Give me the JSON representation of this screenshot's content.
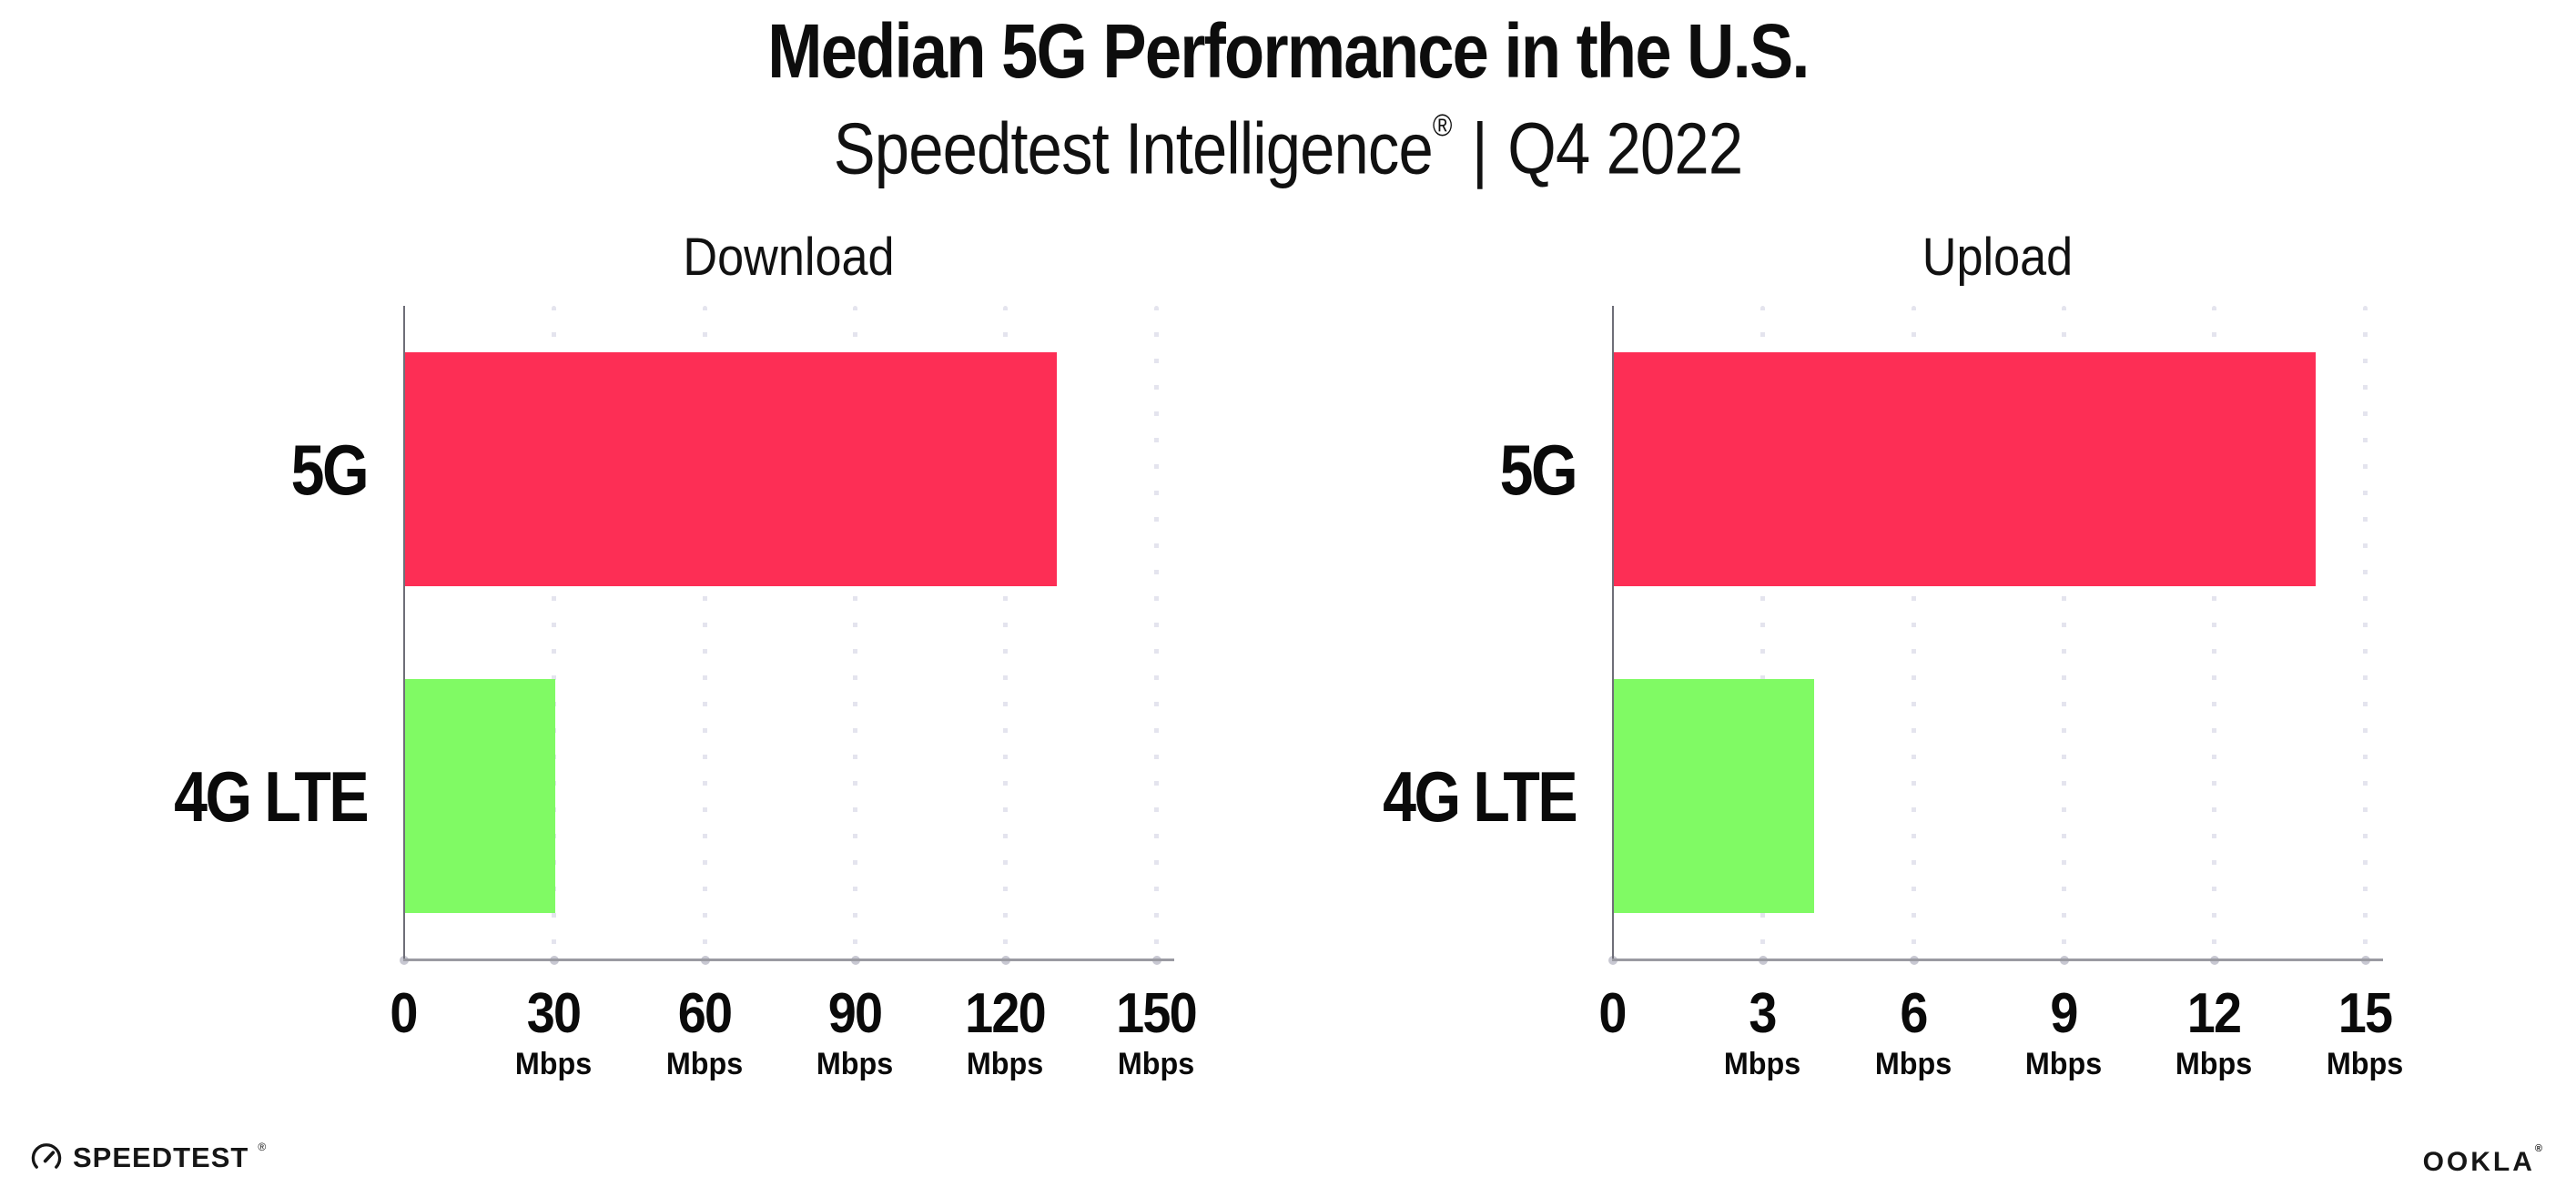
{
  "header": {
    "title": "Median 5G Performance in the U.S.",
    "subtitle_brand": "Speedtest Intelligence",
    "subtitle_registered": "®",
    "subtitle_separator": "|",
    "subtitle_period": "Q4 2022"
  },
  "footer": {
    "speedtest_label": "SPEEDTEST",
    "speedtest_registered": "®",
    "ookla_label": "OOKLA",
    "ookla_registered": "®"
  },
  "colors": {
    "bar_5g": "#fd2e55",
    "bar_4g_lte": "#80fa64",
    "axis_y": "#6e6e78",
    "axis_x": "#9a9aa2",
    "grid_dot": "#e4e4ee",
    "tick_dot": "#c8c8d2",
    "text": "#0d0d0d"
  },
  "chart_data": [
    {
      "type": "bar",
      "orientation": "horizontal",
      "title": "Download",
      "categories": [
        "5G",
        "4G LTE"
      ],
      "values": [
        130,
        30
      ],
      "unit": "Mbps",
      "xlim": [
        0,
        150
      ],
      "xticks": [
        0,
        30,
        60,
        90,
        120,
        150
      ],
      "tick_unit_label": "Mbps",
      "unit_shown_on_zero": false,
      "grid": "vertical-dotted",
      "legend": "none"
    },
    {
      "type": "bar",
      "orientation": "horizontal",
      "title": "Upload",
      "categories": [
        "5G",
        "4G LTE"
      ],
      "values": [
        14,
        4
      ],
      "unit": "Mbps",
      "xlim": [
        0,
        15
      ],
      "xticks": [
        0,
        3,
        6,
        9,
        12,
        15
      ],
      "tick_unit_label": "Mbps",
      "unit_shown_on_zero": false,
      "grid": "vertical-dotted",
      "legend": "none"
    }
  ]
}
